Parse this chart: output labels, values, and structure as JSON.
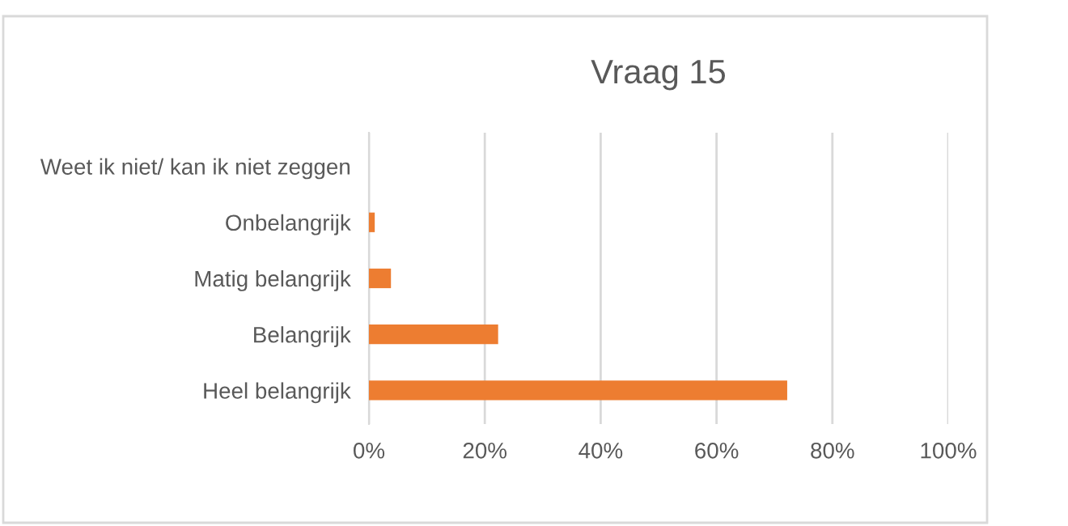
{
  "chart_data": {
    "type": "bar",
    "orientation": "horizontal",
    "title": "Vraag 15",
    "categories": [
      "Weet ik niet/ kan ik niet zeggen",
      "Onbelangrijk",
      "Matig belangrijk",
      "Belangrijk",
      "Heel belangrijk"
    ],
    "values": [
      0,
      1.0,
      3.8,
      22.3,
      72.2
    ],
    "color": "#ed7d31",
    "xlim": [
      0,
      100
    ],
    "xticks": [
      {
        "value": 0,
        "label": "0%"
      },
      {
        "value": 20,
        "label": "20%"
      },
      {
        "value": 40,
        "label": "40%"
      },
      {
        "value": 60,
        "label": "60%"
      },
      {
        "value": 80,
        "label": "80%"
      },
      {
        "value": 100,
        "label": "100%"
      }
    ],
    "grid": "x",
    "legend": false
  }
}
